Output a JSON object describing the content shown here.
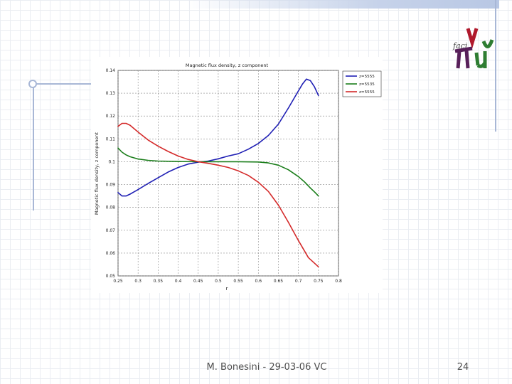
{
  "slide": {
    "footer": "M. Bonesini - 29-03-06 VC",
    "page_number": "24"
  },
  "logo": {
    "label": "faci",
    "colors": [
      "#b0192c",
      "#58205a",
      "#2e7d32"
    ]
  },
  "chart_data": {
    "type": "line",
    "title": "Magnetic flux density, z component",
    "xlabel": "r",
    "ylabel": "Magnetic flux density, z component",
    "xlim": [
      0.25,
      0.8
    ],
    "ylim": [
      0.05,
      0.14
    ],
    "xticks": [
      "0.25",
      "0.3",
      "0.35",
      "0.4",
      "0.45",
      "0.5",
      "0.55",
      "0.6",
      "0.65",
      "0.7",
      "0.75",
      "0.8"
    ],
    "yticks": [
      "0.05",
      "0.06",
      "0.07",
      "0.08",
      "0.09",
      "0.1",
      "0.11",
      "0.12",
      "0.13",
      "0.14"
    ],
    "grid": true,
    "legend_position": "top-right",
    "series": [
      {
        "name": "z=5555",
        "color": "#1f1fb4",
        "x": [
          0.25,
          0.26,
          0.27,
          0.28,
          0.29,
          0.3,
          0.325,
          0.35,
          0.375,
          0.4,
          0.425,
          0.45,
          0.475,
          0.5,
          0.525,
          0.55,
          0.575,
          0.6,
          0.625,
          0.65,
          0.675,
          0.7,
          0.71,
          0.72,
          0.73,
          0.74,
          0.75
        ],
        "y": [
          0.0865,
          0.085,
          0.085,
          0.0858,
          0.0868,
          0.0878,
          0.0905,
          0.093,
          0.0955,
          0.0975,
          0.099,
          0.0998,
          0.1003,
          0.1013,
          0.1025,
          0.1035,
          0.1055,
          0.108,
          0.1115,
          0.1165,
          0.1235,
          0.131,
          0.134,
          0.1362,
          0.1355,
          0.1328,
          0.129
        ]
      },
      {
        "name": "z=5535",
        "color": "#1a7d1a",
        "x": [
          0.25,
          0.26,
          0.27,
          0.28,
          0.3,
          0.325,
          0.35,
          0.4,
          0.45,
          0.5,
          0.55,
          0.6,
          0.625,
          0.65,
          0.675,
          0.7,
          0.715,
          0.73,
          0.74,
          0.75
        ],
        "y": [
          0.106,
          0.1042,
          0.103,
          0.1022,
          0.1012,
          0.1006,
          0.1003,
          0.1001,
          0.1,
          0.1,
          0.1,
          0.0999,
          0.0995,
          0.0985,
          0.0965,
          0.0935,
          0.0912,
          0.0885,
          0.0868,
          0.085
        ]
      },
      {
        "name": "z=5555",
        "color": "#d42a2a",
        "x": [
          0.25,
          0.26,
          0.27,
          0.28,
          0.29,
          0.3,
          0.325,
          0.35,
          0.375,
          0.4,
          0.425,
          0.45,
          0.475,
          0.5,
          0.525,
          0.55,
          0.575,
          0.6,
          0.625,
          0.65,
          0.675,
          0.7,
          0.725,
          0.75
        ],
        "y": [
          0.1155,
          0.1168,
          0.1168,
          0.116,
          0.1145,
          0.113,
          0.1095,
          0.1068,
          0.1045,
          0.1025,
          0.101,
          0.1,
          0.0993,
          0.0985,
          0.0975,
          0.096,
          0.094,
          0.091,
          0.087,
          0.081,
          0.0735,
          0.0655,
          0.058,
          0.054
        ]
      }
    ]
  }
}
